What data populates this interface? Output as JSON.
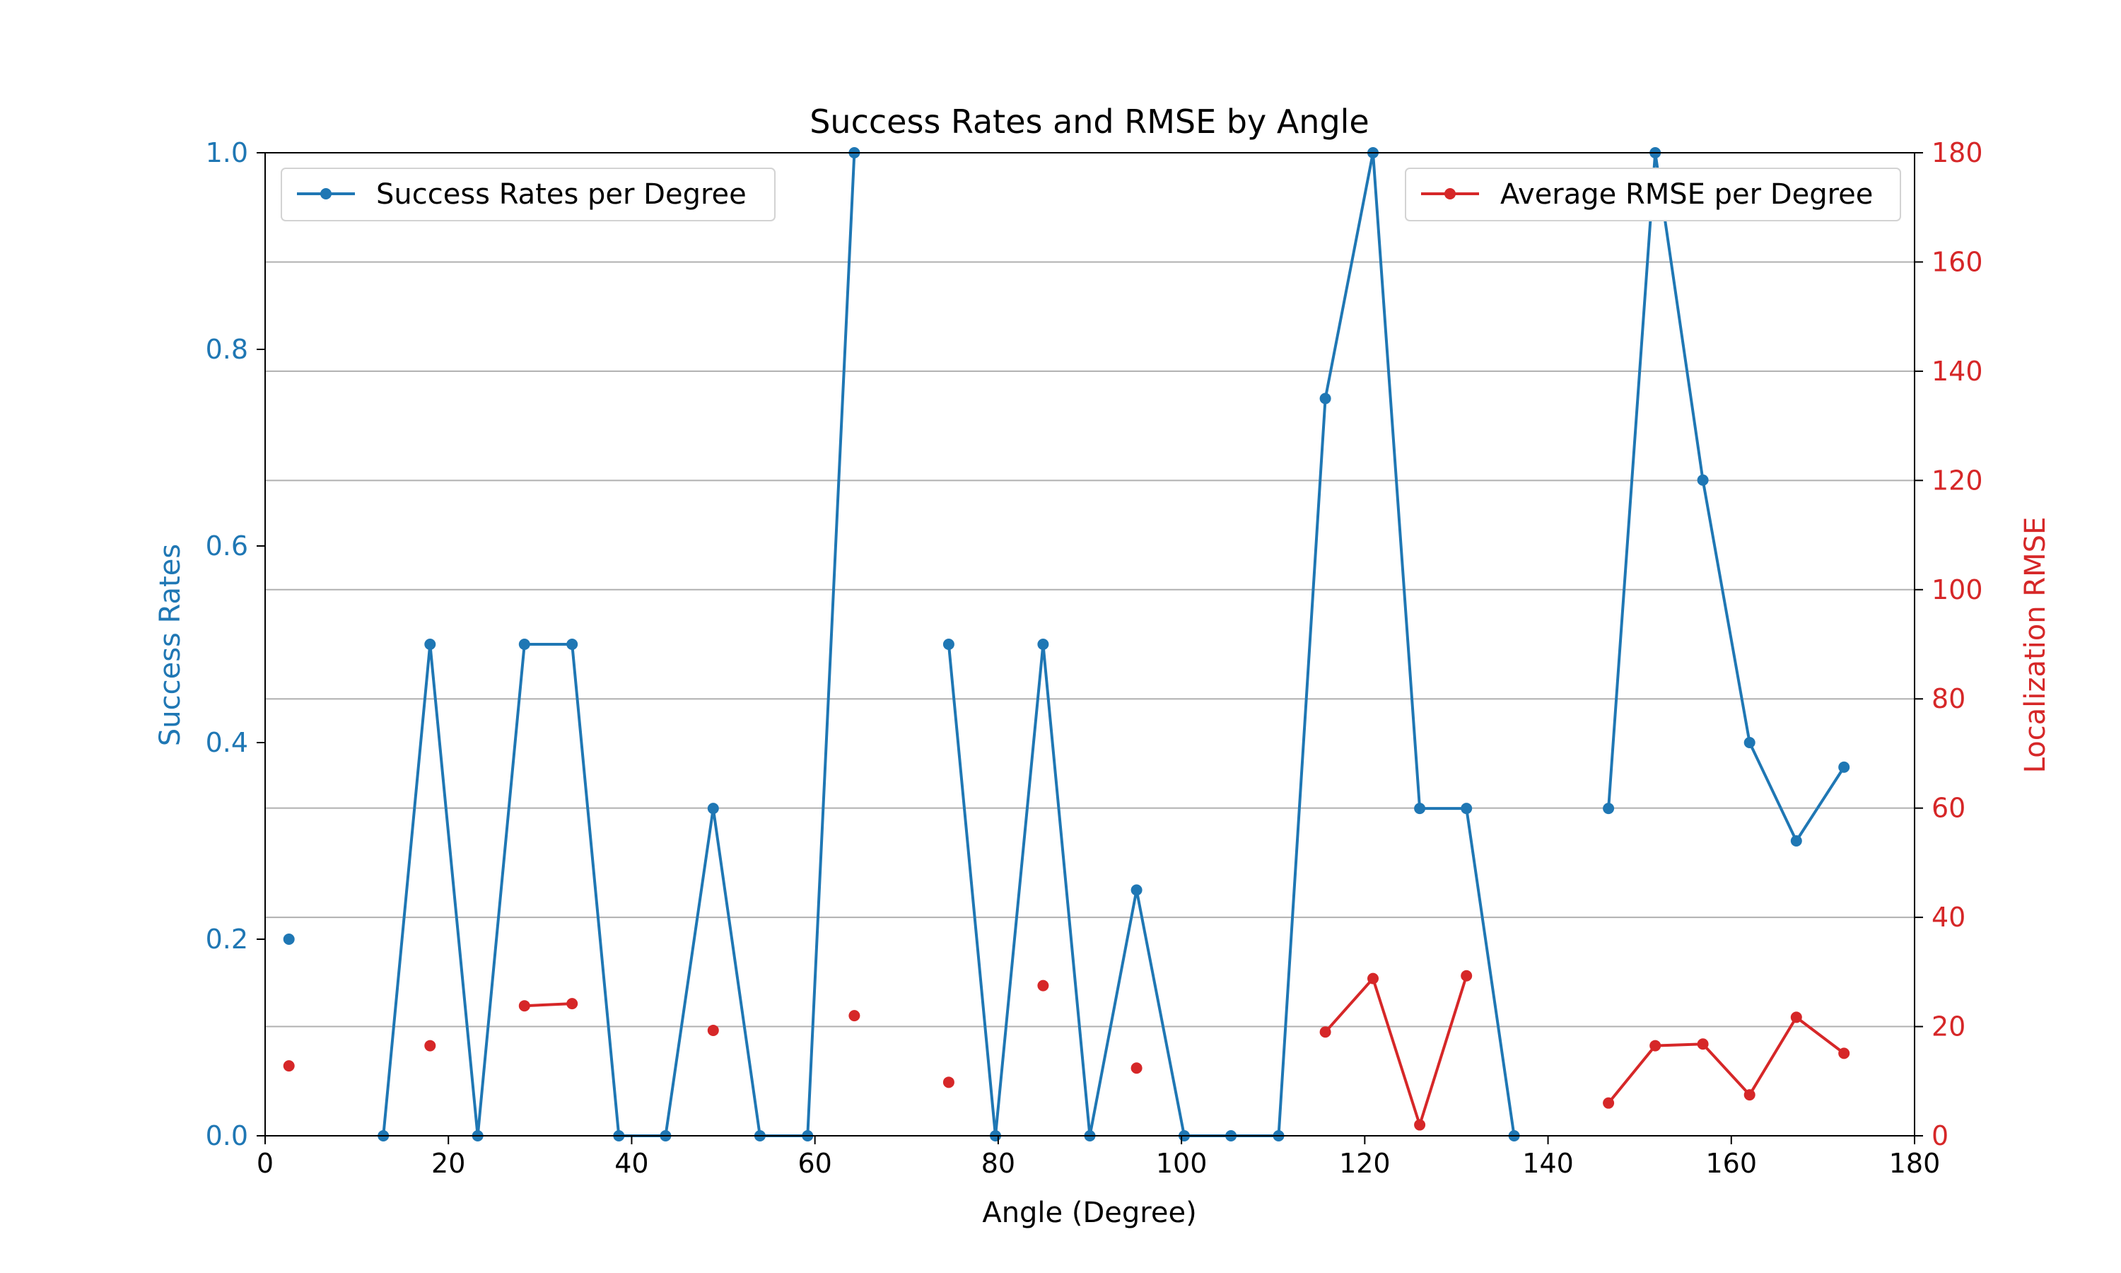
{
  "chart_data": {
    "type": "line",
    "title": "Success Rates and RMSE by Angle",
    "xlabel": "Angle (Degree)",
    "ylabel_left": "Success Rates",
    "ylabel_right": "Localization RMSE",
    "xlim": [
      0,
      180
    ],
    "ylim_left": [
      0,
      1
    ],
    "ylim_right": [
      0,
      180
    ],
    "x_ticks": [
      0,
      20,
      40,
      60,
      80,
      100,
      120,
      140,
      160,
      180
    ],
    "x_tick_labels": [
      "0",
      "20",
      "40",
      "60",
      "80",
      "100",
      "120",
      "140",
      "160",
      "180"
    ],
    "y_left_ticks": [
      0,
      0.2,
      0.4,
      0.6,
      0.8,
      1.0
    ],
    "y_left_tick_labels": [
      "0.0",
      "0.2",
      "0.4",
      "0.6",
      "0.8",
      "1.0"
    ],
    "y_right_ticks": [
      0,
      20,
      40,
      60,
      80,
      100,
      120,
      140,
      160,
      180
    ],
    "y_right_tick_labels": [
      "0",
      "20",
      "40",
      "60",
      "80",
      "100",
      "120",
      "140",
      "160",
      "180"
    ],
    "grid": "horizontal, right axis",
    "left_color": "#1f77b4",
    "right_color": "#d62728",
    "series": [
      {
        "name": "Success Rates per Degree",
        "axis": "left",
        "color": "#1f77b4",
        "legend_position": "upper-left",
        "points": [
          [
            2.6,
            0.2
          ],
          [
            7.8,
            null
          ],
          [
            12.9,
            0.0
          ],
          [
            18.0,
            0.5
          ],
          [
            23.2,
            0.0
          ],
          [
            28.3,
            0.5
          ],
          [
            33.5,
            0.5
          ],
          [
            38.6,
            0.0
          ],
          [
            43.7,
            0.0
          ],
          [
            48.9,
            0.333
          ],
          [
            54.0,
            0.0
          ],
          [
            59.2,
            0.0
          ],
          [
            64.3,
            1.0
          ],
          [
            69.4,
            null
          ],
          [
            74.6,
            0.5
          ],
          [
            79.7,
            0.0
          ],
          [
            84.9,
            0.5
          ],
          [
            90.0,
            0.0
          ],
          [
            95.1,
            0.25
          ],
          [
            100.3,
            0.0
          ],
          [
            105.4,
            0.0
          ],
          [
            110.6,
            0.0
          ],
          [
            115.7,
            0.75
          ],
          [
            120.9,
            1.0
          ],
          [
            126.0,
            0.333
          ],
          [
            131.1,
            0.333
          ],
          [
            136.3,
            0.0
          ],
          [
            141.4,
            null
          ],
          [
            146.6,
            0.333
          ],
          [
            151.7,
            1.0
          ],
          [
            156.9,
            0.667
          ],
          [
            162.0,
            0.4
          ],
          [
            167.1,
            0.3
          ],
          [
            172.3,
            0.375
          ]
        ]
      },
      {
        "name": "Average RMSE per Degree",
        "axis": "right",
        "color": "#d62728",
        "legend_position": "upper-right",
        "points": [
          [
            2.6,
            12.8
          ],
          [
            7.8,
            null
          ],
          [
            12.9,
            null
          ],
          [
            18.0,
            16.5
          ],
          [
            23.2,
            null
          ],
          [
            28.3,
            23.8
          ],
          [
            33.5,
            24.2
          ],
          [
            38.6,
            null
          ],
          [
            43.7,
            null
          ],
          [
            48.9,
            19.3
          ],
          [
            54.0,
            null
          ],
          [
            59.2,
            null
          ],
          [
            64.3,
            22.0
          ],
          [
            69.4,
            null
          ],
          [
            74.6,
            9.8
          ],
          [
            79.7,
            null
          ],
          [
            84.9,
            27.5
          ],
          [
            90.0,
            null
          ],
          [
            95.1,
            12.4
          ],
          [
            100.3,
            null
          ],
          [
            105.4,
            null
          ],
          [
            110.6,
            null
          ],
          [
            115.7,
            19.0
          ],
          [
            120.9,
            28.8
          ],
          [
            126.0,
            2.0
          ],
          [
            131.1,
            29.3
          ],
          [
            136.3,
            null
          ],
          [
            141.4,
            null
          ],
          [
            146.6,
            6.0
          ],
          [
            151.7,
            16.5
          ],
          [
            156.9,
            16.8
          ],
          [
            162.0,
            7.5
          ],
          [
            167.1,
            21.7
          ],
          [
            172.3,
            15.1
          ]
        ]
      }
    ]
  }
}
